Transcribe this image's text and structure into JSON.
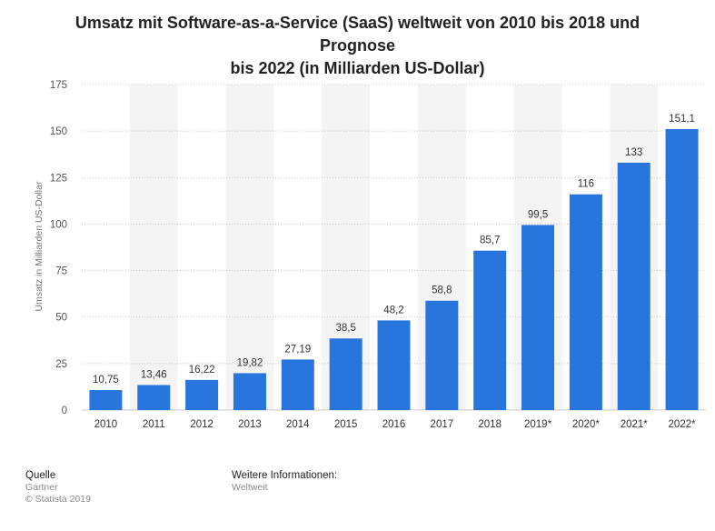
{
  "chart_data": {
    "type": "bar",
    "title": "Umsatz mit Software-as-a-Service (SaaS) weltweit von 2010 bis 2018 und Prognose bis 2022 (in Milliarden US-Dollar)",
    "title_lines": [
      "Umsatz mit Software-as-a-Service (SaaS) weltweit von 2010 bis 2018 und Prognose",
      "bis 2022 (in Milliarden US-Dollar)"
    ],
    "ylabel": "Umsatz in Milliarden US-Dollar",
    "xlabel": "",
    "categories": [
      "2010",
      "2011",
      "2012",
      "2013",
      "2014",
      "2015",
      "2016",
      "2017",
      "2018",
      "2019*",
      "2020*",
      "2021*",
      "2022*"
    ],
    "values": [
      10.75,
      13.46,
      16.22,
      19.82,
      27.19,
      38.5,
      48.2,
      58.8,
      85.7,
      99.5,
      116,
      133,
      151.1
    ],
    "value_labels": [
      "10,75",
      "13,46",
      "16,22",
      "19,82",
      "27,19",
      "38,5",
      "48,2",
      "58,8",
      "85,7",
      "99,5",
      "116",
      "133",
      "151,1"
    ],
    "ylim": [
      0,
      175
    ],
    "yticks": [
      0,
      25,
      50,
      75,
      100,
      125,
      150,
      175
    ],
    "grid": true,
    "legend": "none",
    "colors": {
      "bar": "#2876dd",
      "band": "#f4f4f4",
      "grid": "#c8c8c8"
    }
  },
  "footer": {
    "source_heading": "Quelle",
    "source_name": "Gartner",
    "copyright": "© Statista 2019",
    "info_heading": "Weitere Informationen:",
    "info_text": "Weltweit"
  }
}
